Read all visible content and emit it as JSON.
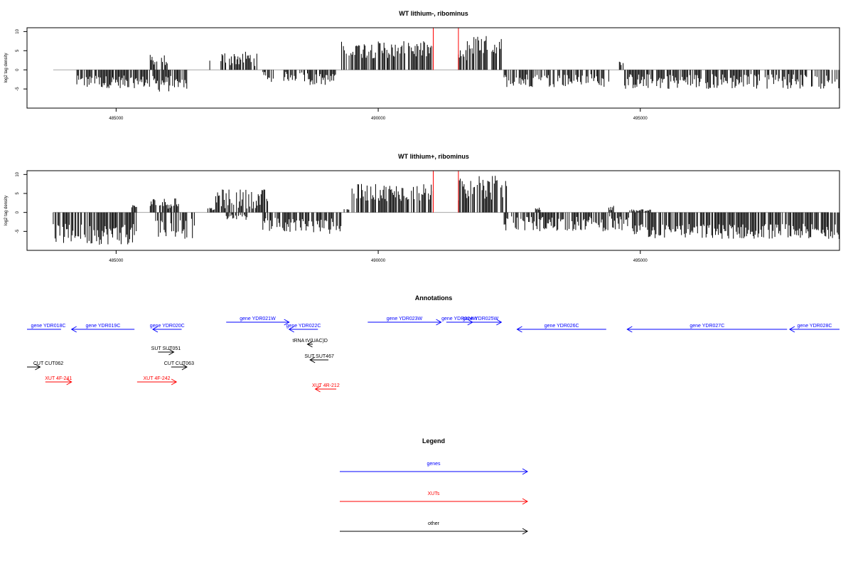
{
  "chart_data": [
    {
      "type": "bar",
      "title": "WT lithium-, ribominus",
      "ylabel": "log2 tag density",
      "xlabel": "",
      "xlim": [
        483300,
        498800
      ],
      "ylim": [
        -10,
        11
      ],
      "xticks": [
        485000,
        490000,
        495000
      ],
      "yticks": [
        10,
        5,
        0,
        -5
      ],
      "highlight_lines_x": [
        491050,
        491530
      ],
      "highlight_color": "#ff0000",
      "bar_color": "#000000",
      "regions": [
        {
          "start": 484250,
          "end": 485650,
          "min": -4.8,
          "max": -1.5,
          "sign": -1
        },
        {
          "start": 485650,
          "end": 486000,
          "min": 1.0,
          "max": 4.0,
          "sign": 1
        },
        {
          "start": 485700,
          "end": 486350,
          "min": -5.8,
          "max": -1.5,
          "sign": -1
        },
        {
          "start": 486750,
          "end": 486800,
          "min": 2.0,
          "max": 2.5,
          "sign": 1
        },
        {
          "start": 487000,
          "end": 487700,
          "min": 1.0,
          "max": 5.0,
          "sign": 1
        },
        {
          "start": 487800,
          "end": 488000,
          "min": -3.5,
          "max": -0.5,
          "sign": -1
        },
        {
          "start": 488200,
          "end": 488700,
          "min": -3.0,
          "max": -0.5,
          "sign": -1
        },
        {
          "start": 488700,
          "end": 489200,
          "min": -4.0,
          "max": -1.0,
          "sign": -1
        },
        {
          "start": 489300,
          "end": 491050,
          "min": 3.0,
          "max": 7.5,
          "sign": 1
        },
        {
          "start": 491530,
          "end": 491700,
          "min": 1.5,
          "max": 5.5,
          "sign": 1
        },
        {
          "start": 491700,
          "end": 492350,
          "min": 3.0,
          "max": 9.0,
          "sign": 1
        },
        {
          "start": 492400,
          "end": 494400,
          "min": -4.5,
          "max": -1.0,
          "sign": -1
        },
        {
          "start": 494600,
          "end": 494700,
          "min": 1.0,
          "max": 2.5,
          "sign": 1
        },
        {
          "start": 494700,
          "end": 498800,
          "min": -5.0,
          "max": -1.0,
          "sign": -1
        }
      ]
    },
    {
      "type": "bar",
      "title": "WT lithium+, ribominus",
      "ylabel": "log2 tag density",
      "xlabel": "",
      "xlim": [
        483300,
        498800
      ],
      "ylim": [
        -10,
        11
      ],
      "xticks": [
        485000,
        490000,
        495000
      ],
      "yticks": [
        10,
        5,
        0,
        -5
      ],
      "highlight_lines_x": [
        491050,
        491530
      ],
      "highlight_color": "#ff0000",
      "bar_color": "#000000",
      "regions": [
        {
          "start": 483800,
          "end": 485400,
          "min": -8.5,
          "max": -3.0,
          "sign": -1
        },
        {
          "start": 485300,
          "end": 485400,
          "min": 1.0,
          "max": 2.0,
          "sign": 1
        },
        {
          "start": 485650,
          "end": 486200,
          "min": 1.0,
          "max": 3.8,
          "sign": 1
        },
        {
          "start": 485700,
          "end": 486500,
          "min": -7.0,
          "max": -1.5,
          "sign": -1
        },
        {
          "start": 486750,
          "end": 486900,
          "min": 0.5,
          "max": 1.2,
          "sign": 1
        },
        {
          "start": 486900,
          "end": 487900,
          "min": 1.0,
          "max": 6.2,
          "sign": 1
        },
        {
          "start": 487100,
          "end": 487500,
          "min": -2.0,
          "max": -0.5,
          "sign": -1
        },
        {
          "start": 487800,
          "end": 488300,
          "min": -5.0,
          "max": -1.0,
          "sign": -1
        },
        {
          "start": 488300,
          "end": 489300,
          "min": -6.0,
          "max": -1.5,
          "sign": -1
        },
        {
          "start": 489350,
          "end": 489450,
          "min": 0.5,
          "max": 1.2,
          "sign": 1
        },
        {
          "start": 489500,
          "end": 491050,
          "min": 3.0,
          "max": 7.5,
          "sign": 1
        },
        {
          "start": 491530,
          "end": 492500,
          "min": 3.0,
          "max": 10.0,
          "sign": 1
        },
        {
          "start": 492400,
          "end": 494800,
          "min": -5.0,
          "max": -1.0,
          "sign": -1
        },
        {
          "start": 493000,
          "end": 493100,
          "min": 0.5,
          "max": 2.0,
          "sign": 1
        },
        {
          "start": 494400,
          "end": 494500,
          "min": 0.5,
          "max": 2.0,
          "sign": 1
        },
        {
          "start": 494800,
          "end": 495200,
          "min": 0.3,
          "max": 0.8,
          "sign": 1
        },
        {
          "start": 494850,
          "end": 498800,
          "min": -7.0,
          "max": -3.0,
          "sign": -1
        }
      ]
    }
  ],
  "annotations": {
    "title": "Annotations",
    "features": [
      {
        "label": "gene YDR018C",
        "x1": 483300,
        "x2": 483950,
        "row": 0,
        "dir": "left",
        "color": "#0000ff"
      },
      {
        "label": "gene YDR019C",
        "x1": 484150,
        "x2": 485350,
        "row": 0,
        "dir": "left",
        "color": "#0000ff"
      },
      {
        "label": "gene YDR020C",
        "x1": 485700,
        "x2": 486250,
        "row": 0,
        "dir": "left",
        "color": "#0000ff"
      },
      {
        "label": "gene YDR021W",
        "x1": 487100,
        "x2": 488300,
        "row": -1,
        "dir": "right",
        "color": "#0000ff"
      },
      {
        "label": "gene YDR022C",
        "x1": 488300,
        "x2": 488850,
        "row": 0,
        "dir": "left",
        "color": "#0000ff"
      },
      {
        "label": "gene YDR023W",
        "x1": 489800,
        "x2": 491200,
        "row": -1,
        "dir": "right",
        "color": "#0000ff"
      },
      {
        "label": "gene YDR024W",
        "x1": 491300,
        "x2": 491800,
        "row": -1,
        "dir": "right",
        "color": "#0000ff"
      },
      {
        "label": "gene YDR025W",
        "x1": 491550,
        "x2": 492350,
        "row": -1,
        "dir": "right",
        "color": "#0000ff"
      },
      {
        "label": "gene YDR026C",
        "x1": 492650,
        "x2": 494350,
        "row": 0,
        "dir": "left",
        "color": "#0000ff"
      },
      {
        "label": "gene YDR027C",
        "x1": 494750,
        "x2": 497800,
        "row": 0,
        "dir": "left",
        "color": "#0000ff"
      },
      {
        "label": "gene YDR028C",
        "x1": 497850,
        "x2": 498800,
        "row": 0,
        "dir": "left",
        "color": "#0000ff"
      },
      {
        "label": "tRNA tV(UAC)D",
        "x1": 488650,
        "x2": 488750,
        "row": 1,
        "dir": "left",
        "color": "#000000"
      },
      {
        "label": "SUT SUT051",
        "x1": 485800,
        "x2": 486100,
        "row": 2,
        "dir": "right",
        "color": "#000000"
      },
      {
        "label": "SUT SUT467",
        "x1": 488700,
        "x2": 489050,
        "row": 3,
        "dir": "left",
        "color": "#000000"
      },
      {
        "label": "CUT CUT062",
        "x1": 483300,
        "x2": 483550,
        "row": 4,
        "dir": "right",
        "color": "#000000"
      },
      {
        "label": "CUT CUT063",
        "x1": 486050,
        "x2": 486350,
        "row": 4,
        "dir": "right",
        "color": "#000000"
      },
      {
        "label": "XUT 4F-241",
        "x1": 483650,
        "x2": 484150,
        "row": 5,
        "dir": "right",
        "color": "#ff0000"
      },
      {
        "label": "XUT 4F-242",
        "x1": 485400,
        "x2": 486150,
        "row": 5,
        "dir": "right",
        "color": "#ff0000"
      },
      {
        "label": "XUT 4R-212",
        "x1": 488800,
        "x2": 489200,
        "row": 6,
        "dir": "left",
        "color": "#ff0000"
      }
    ]
  },
  "legend": {
    "title": "Legend",
    "items": [
      {
        "label": "genes",
        "color": "#0000ff"
      },
      {
        "label": "XUTs",
        "color": "#ff0000"
      },
      {
        "label": "other",
        "color": "#000000"
      }
    ]
  }
}
